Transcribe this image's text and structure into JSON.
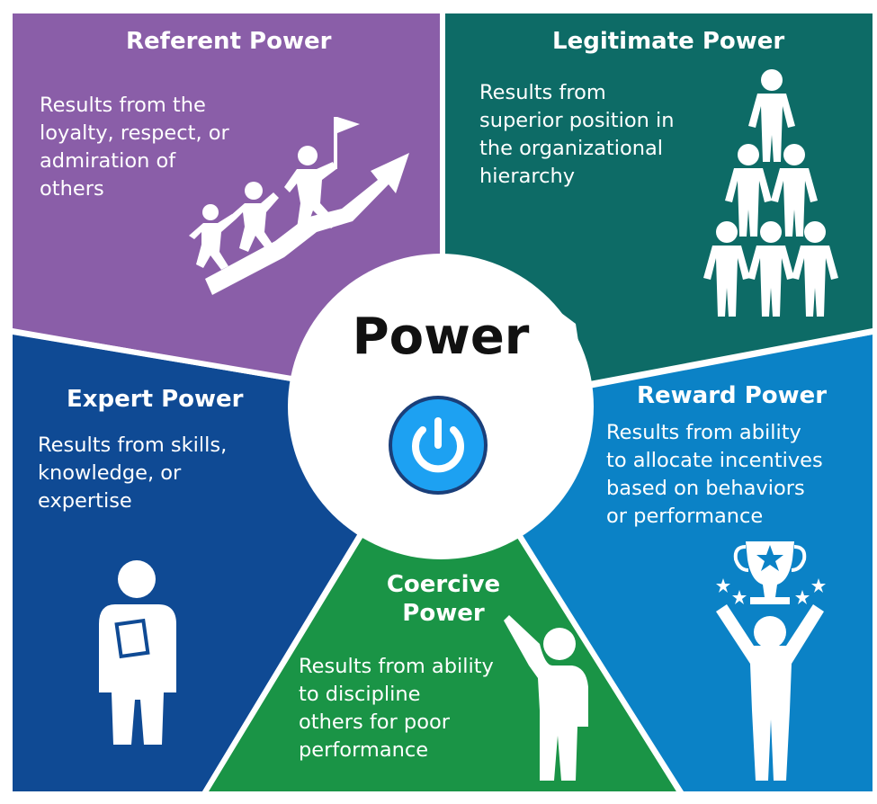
{
  "center": {
    "title": "Power",
    "icon": "power-button-icon",
    "icon_color": "#1da1f2"
  },
  "sections": {
    "referent": {
      "title": "Referent Power",
      "lines": [
        "Results from the",
        "loyalty, respect, or",
        "admiration of",
        "others"
      ],
      "icon": "people-climbing-arrow-icon",
      "color": "#8a5ea8"
    },
    "legitimate": {
      "title": "Legitimate Power",
      "lines": [
        "Results from",
        "superior position in",
        "the organizational",
        "hierarchy"
      ],
      "icon": "people-pyramid-icon",
      "color": "#0d6b66"
    },
    "expert": {
      "title": "Expert Power",
      "lines": [
        "Results from skills,",
        "knowledge, or",
        "expertise"
      ],
      "icon": "person-with-book-icon",
      "color": "#0f4a94"
    },
    "reward": {
      "title": "Reward Power",
      "lines": [
        "Results from ability",
        "to allocate incentives",
        "based on behaviors",
        "or performance"
      ],
      "icon": "person-with-trophy-icon",
      "color": "#0b82c6"
    },
    "coercive": {
      "title_lines": [
        "Coercive",
        "Power"
      ],
      "lines": [
        "Results from ability",
        "to discipline",
        "others for poor",
        "performance"
      ],
      "icon": "person-pointing-icon",
      "color": "#1a9446"
    }
  }
}
